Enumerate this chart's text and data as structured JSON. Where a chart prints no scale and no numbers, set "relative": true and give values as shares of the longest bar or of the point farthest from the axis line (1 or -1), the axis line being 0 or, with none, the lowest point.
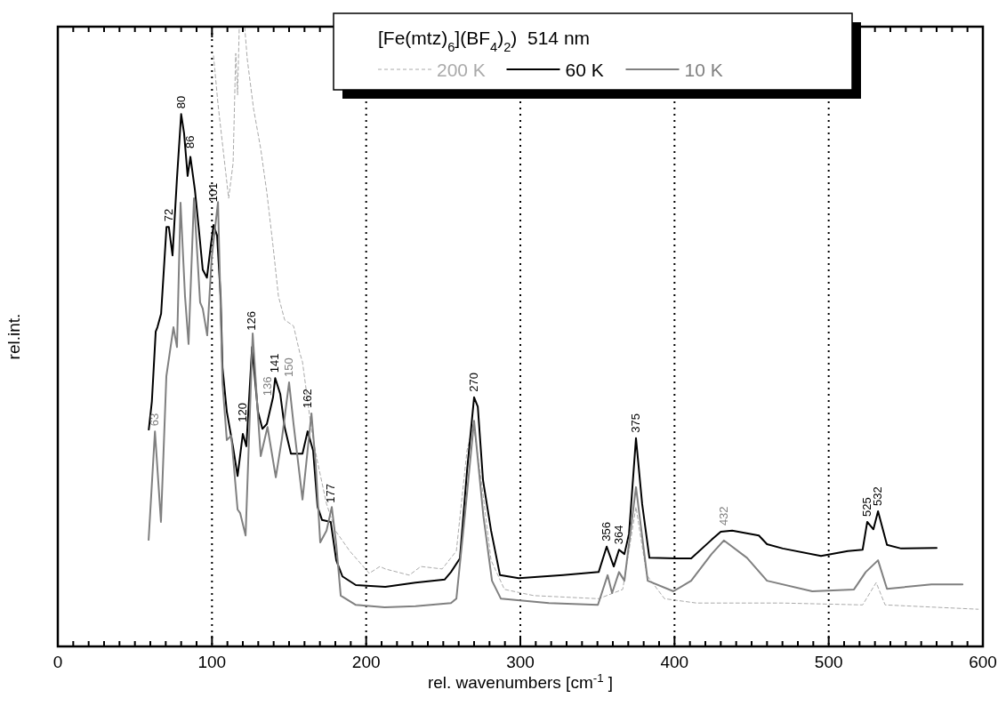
{
  "chart_data": {
    "type": "line",
    "relative": true,
    "legend_title": "[Fe(mtz)$_{6}$](BF$_{4}$)$_{2}$)  514 nm",
    "legend": "top",
    "xlabel": "rel. wavenumbers [cm$^{-1}$ ]",
    "ylabel": "rel.int.",
    "xlim": [
      0,
      600
    ],
    "xticks": [
      0,
      100,
      200,
      300,
      400,
      500,
      600
    ],
    "grid": "x",
    "series": [
      {
        "name": "200 K",
        "color": "#aaaaaa",
        "line_style": "dashed",
        "x": [
          101,
          103.9,
          110.8,
          113.7,
          115.4,
          116.6,
          117.7,
          121.2,
          122.9,
          127,
          131.6,
          135.6,
          139.6,
          143.1,
          147.1,
          152.9,
          157,
          158.7,
          164.5,
          168.5,
          174.3,
          180,
          189.3,
          202,
          208.9,
          212.4,
          228,
          235.4,
          249.3,
          258.5,
          265.4,
          269.5,
          275.2,
          281,
          289.7,
          308.7,
          350.8,
          366.4,
          375,
          382,
          393.5,
          414.3,
          470.3,
          522,
          530.8,
          536.6,
          597
        ],
        "values": [
          0.953,
          0.875,
          0.723,
          0.78,
          0.957,
          0.89,
          1.0,
          1.0,
          0.947,
          0.867,
          0.803,
          0.732,
          0.646,
          0.565,
          0.527,
          0.517,
          0.473,
          0.459,
          0.35,
          0.297,
          0.23,
          0.187,
          0.154,
          0.118,
          0.129,
          0.125,
          0.115,
          0.129,
          0.125,
          0.154,
          0.316,
          0.359,
          0.258,
          0.139,
          0.092,
          0.082,
          0.077,
          0.092,
          0.225,
          0.115,
          0.077,
          0.07,
          0.07,
          0.067,
          0.103,
          0.067,
          0.06
        ]
      },
      {
        "name": "60 K",
        "color": "#000000",
        "line_style": "solid",
        "x": [
          59,
          61,
          63.5,
          64.6,
          67,
          70.5,
          72,
          74.4,
          77.3,
          80,
          81.9,
          84.2,
          86,
          88.9,
          91.2,
          94,
          96.7,
          99.2,
          101,
          103.3,
          105.6,
          106.8,
          109.6,
          113.7,
          116.6,
          120,
          122.3,
          126,
          129.8,
          132.7,
          135.6,
          139.6,
          141,
          144.3,
          147.1,
          151.2,
          158.7,
          162,
          165.6,
          168.5,
          171.4,
          177,
          180.6,
          184.6,
          193.3,
          212.4,
          232,
          251,
          255,
          260.8,
          265.4,
          270,
          272.4,
          275.8,
          281,
          286.8,
          299,
          327.8,
          350.8,
          356,
          360.6,
          364,
          367.5,
          370.5,
          375,
          379,
          383.7,
          401,
          410.8,
          424,
          430,
          437.4,
          454.7,
          460,
          470.3,
          495,
          512.4,
          522,
          525,
          529,
          532,
          537.8,
          547,
          570
        ],
        "values": [
          0.35,
          0.395,
          0.508,
          0.515,
          0.537,
          0.677,
          0.677,
          0.631,
          0.756,
          0.859,
          0.828,
          0.759,
          0.79,
          0.737,
          0.68,
          0.608,
          0.595,
          0.646,
          0.68,
          0.663,
          0.565,
          0.45,
          0.379,
          0.321,
          0.275,
          0.343,
          0.323,
          0.483,
          0.379,
          0.351,
          0.359,
          0.402,
          0.433,
          0.407,
          0.354,
          0.311,
          0.311,
          0.347,
          0.316,
          0.225,
          0.204,
          0.201,
          0.139,
          0.113,
          0.099,
          0.096,
          0.103,
          0.108,
          0.12,
          0.142,
          0.283,
          0.402,
          0.387,
          0.268,
          0.187,
          0.115,
          0.11,
          0.115,
          0.12,
          0.161,
          0.129,
          0.156,
          0.149,
          0.182,
          0.336,
          0.23,
          0.143,
          0.142,
          0.142,
          0.172,
          0.185,
          0.187,
          0.179,
          0.165,
          0.158,
          0.146,
          0.154,
          0.156,
          0.201,
          0.189,
          0.218,
          0.164,
          0.158,
          0.159
        ]
      },
      {
        "name": "10 K",
        "color": "#808080",
        "line_style": "solid",
        "x": [
          58.9,
          63,
          66.9,
          70.4,
          75,
          77.3,
          79.6,
          82.5,
          84.8,
          88.3,
          92.3,
          94,
          96.9,
          99.8,
          103.9,
          106.8,
          109.6,
          112.5,
          116.6,
          118.3,
          121.8,
          126.4,
          129.8,
          131.6,
          136,
          141.4,
          145.4,
          150,
          152.9,
          158.7,
          164.5,
          167.3,
          170.2,
          174.3,
          177.7,
          180.6,
          183.5,
          193.3,
          212,
          232,
          255,
          258.5,
          264,
          270,
          276,
          281.6,
          287.4,
          318.5,
          350.3,
          356.6,
          359.5,
          364,
          367.5,
          375,
          382.6,
          399.3,
          410.8,
          424,
          432,
          447,
          460,
          489.3,
          516.4,
          524,
          532,
          537.8,
          566.6,
          586.8
        ],
        "values": [
          0.172,
          0.347,
          0.201,
          0.436,
          0.515,
          0.483,
          0.716,
          0.565,
          0.488,
          0.723,
          0.555,
          0.545,
          0.502,
          0.627,
          0.717,
          0.426,
          0.333,
          0.34,
          0.221,
          0.215,
          0.179,
          0.505,
          0.373,
          0.307,
          0.354,
          0.273,
          0.336,
          0.426,
          0.359,
          0.237,
          0.376,
          0.293,
          0.168,
          0.187,
          0.225,
          0.164,
          0.082,
          0.067,
          0.063,
          0.065,
          0.07,
          0.077,
          0.211,
          0.364,
          0.211,
          0.106,
          0.077,
          0.07,
          0.067,
          0.115,
          0.086,
          0.12,
          0.106,
          0.257,
          0.106,
          0.089,
          0.106,
          0.149,
          0.171,
          0.143,
          0.106,
          0.089,
          0.092,
          0.12,
          0.139,
          0.093,
          0.1,
          0.1
        ]
      }
    ],
    "annotations": [
      {
        "text": "63",
        "x": 63,
        "y": 0.347
      },
      {
        "text": "72",
        "x": 72,
        "y": 0.677
      },
      {
        "text": "80",
        "x": 80,
        "y": 0.859
      },
      {
        "text": "86",
        "x": 86,
        "y": 0.79
      },
      {
        "text": "101",
        "x": 101,
        "y": 0.68
      },
      {
        "text": "120",
        "x": 120,
        "y": 0.343
      },
      {
        "text": "126",
        "x": 126,
        "y": 0.483
      },
      {
        "text": "136",
        "x": 136,
        "y": 0.354
      },
      {
        "text": "141",
        "x": 141,
        "y": 0.433
      },
      {
        "text": "150",
        "x": 150,
        "y": 0.426
      },
      {
        "text": "162",
        "x": 162,
        "y": 0.347
      },
      {
        "text": "177",
        "x": 177,
        "y": 0.201
      },
      {
        "text": "270",
        "x": 270,
        "y": 0.402
      },
      {
        "text": "356",
        "x": 356,
        "y": 0.161
      },
      {
        "text": "364",
        "x": 364,
        "y": 0.156
      },
      {
        "text": "375",
        "x": 375,
        "y": 0.336
      },
      {
        "text": "432",
        "x": 432,
        "y": 0.171
      },
      {
        "text": "525",
        "x": 525,
        "y": 0.201
      },
      {
        "text": "532",
        "x": 532,
        "y": 0.218
      }
    ]
  }
}
